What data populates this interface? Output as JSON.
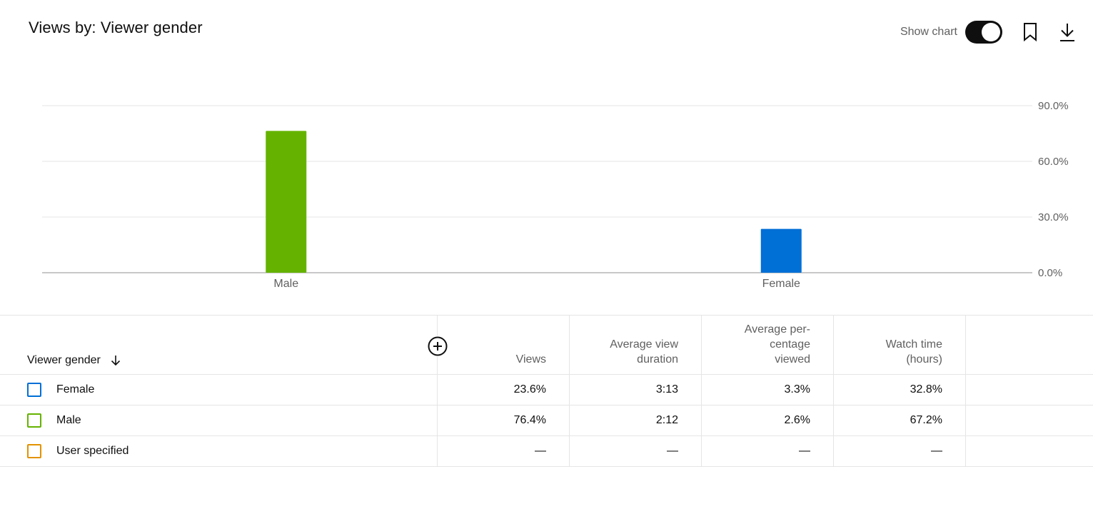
{
  "header": {
    "title": "Views by: Viewer gender",
    "show_chart_label": "Show chart",
    "show_chart_on": true,
    "icons": [
      "bookmark-icon",
      "download-icon"
    ]
  },
  "chart_data": {
    "type": "bar",
    "categories": [
      "Male",
      "Female"
    ],
    "values": [
      76.4,
      23.6
    ],
    "colors": [
      "#65b300",
      "#006fd6"
    ],
    "yticks": [
      "90.0%",
      "60.0%",
      "30.0%",
      "0.0%"
    ],
    "ytick_values": [
      90,
      60,
      30,
      0
    ],
    "ylim": [
      0,
      90
    ],
    "y_axis_side": "right",
    "grid": true
  },
  "table": {
    "dimension_header": "Viewer gender",
    "sort_direction": "descending",
    "columns": [
      "Views",
      "Average view duration",
      "Average per-centage viewed",
      "Watch time (hours)"
    ],
    "column_lines": [
      [
        "Views"
      ],
      [
        "Average view",
        "duration"
      ],
      [
        "Average per-",
        "centage",
        "viewed"
      ],
      [
        "Watch time",
        "(hours)"
      ]
    ],
    "rows": [
      {
        "label": "Female",
        "color": "#006fd6",
        "values": [
          "23.6%",
          "3:13",
          "3.3%",
          "32.8%"
        ]
      },
      {
        "label": "Male",
        "color": "#65b300",
        "values": [
          "76.4%",
          "2:12",
          "2.6%",
          "67.2%"
        ]
      },
      {
        "label": "User specified",
        "color": "#e39200",
        "values": [
          "—",
          "—",
          "—",
          "—"
        ]
      }
    ]
  }
}
